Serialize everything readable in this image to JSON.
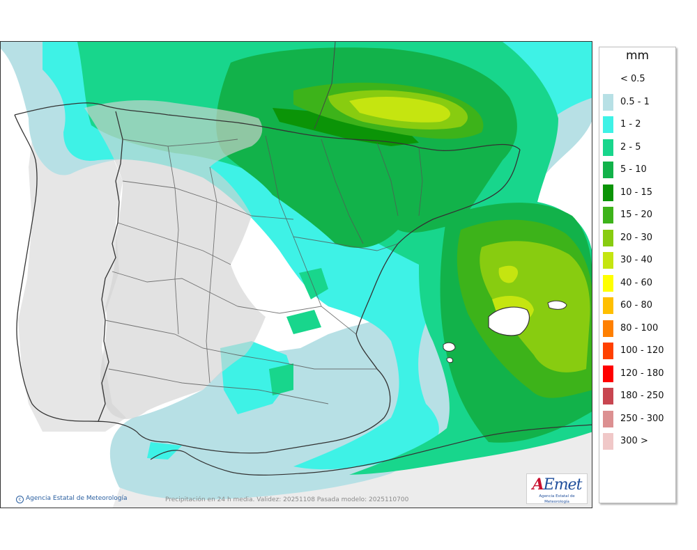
{
  "map": {
    "caption": "Precipitación en 24 h media. Validez: 20251108 Pasada modelo: 2025110700",
    "credit": "Agencia Estatal de Meteorología",
    "logo": {
      "mark_a": "A",
      "mark_rest": "Emet",
      "subtitle": "Agencia Estatal de Meteorología"
    }
  },
  "legend": {
    "unit": "mm",
    "items": [
      {
        "label": "< 0.5",
        "color": ""
      },
      {
        "label": "0.5 - 1",
        "color": "#b7e0e5"
      },
      {
        "label": "1 - 2",
        "color": "#3ef2e6"
      },
      {
        "label": "2 - 5",
        "color": "#18d68c"
      },
      {
        "label": "5 - 10",
        "color": "#12b24a"
      },
      {
        "label": "10 - 15",
        "color": "#0b9407"
      },
      {
        "label": "15 - 20",
        "color": "#3db31a"
      },
      {
        "label": "20 - 30",
        "color": "#88cc10"
      },
      {
        "label": "30 - 40",
        "color": "#c5e510"
      },
      {
        "label": "40 - 60",
        "color": "#ffff00"
      },
      {
        "label": "60 - 80",
        "color": "#ffbf00"
      },
      {
        "label": "80 - 100",
        "color": "#ff8000"
      },
      {
        "label": "100 - 120",
        "color": "#ff4000"
      },
      {
        "label": "120 - 180",
        "color": "#ff0000"
      },
      {
        "label": "180 - 250",
        "color": "#c84650"
      },
      {
        "label": "250 - 300",
        "color": "#dc9091"
      },
      {
        "label": "300 >",
        "color": "#f0c8c8"
      }
    ]
  }
}
